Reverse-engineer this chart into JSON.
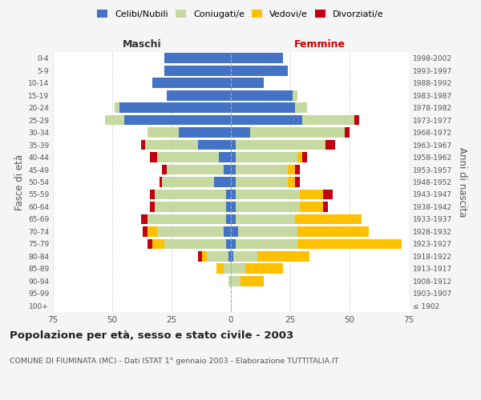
{
  "age_groups": [
    "100+",
    "95-99",
    "90-94",
    "85-89",
    "80-84",
    "75-79",
    "70-74",
    "65-69",
    "60-64",
    "55-59",
    "50-54",
    "45-49",
    "40-44",
    "35-39",
    "30-34",
    "25-29",
    "20-24",
    "15-19",
    "10-14",
    "5-9",
    "0-4"
  ],
  "birth_years": [
    "≤ 1902",
    "1903-1907",
    "1908-1912",
    "1913-1917",
    "1918-1922",
    "1923-1927",
    "1928-1932",
    "1933-1937",
    "1938-1942",
    "1943-1947",
    "1948-1952",
    "1953-1957",
    "1958-1962",
    "1963-1967",
    "1968-1972",
    "1973-1977",
    "1978-1982",
    "1983-1987",
    "1988-1992",
    "1993-1997",
    "1998-2002"
  ],
  "males": {
    "celibi": [
      0,
      0,
      0,
      0,
      1,
      2,
      3,
      2,
      2,
      2,
      7,
      3,
      5,
      14,
      22,
      45,
      47,
      27,
      33,
      28,
      28
    ],
    "coniugati": [
      0,
      0,
      1,
      3,
      9,
      26,
      28,
      33,
      30,
      30,
      22,
      24,
      26,
      22,
      13,
      8,
      2,
      0,
      0,
      0,
      0
    ],
    "vedovi": [
      0,
      0,
      0,
      3,
      2,
      5,
      4,
      0,
      0,
      0,
      0,
      0,
      0,
      0,
      0,
      0,
      0,
      0,
      0,
      0,
      0
    ],
    "divorziati": [
      0,
      0,
      0,
      0,
      2,
      2,
      2,
      3,
      2,
      2,
      1,
      2,
      3,
      2,
      0,
      0,
      0,
      0,
      0,
      0,
      0
    ]
  },
  "females": {
    "nubili": [
      0,
      0,
      0,
      0,
      1,
      2,
      3,
      2,
      2,
      2,
      2,
      2,
      2,
      2,
      8,
      30,
      27,
      26,
      14,
      24,
      22
    ],
    "coniugate": [
      0,
      0,
      4,
      6,
      10,
      26,
      25,
      25,
      27,
      27,
      22,
      22,
      26,
      38,
      40,
      22,
      5,
      2,
      0,
      0,
      0
    ],
    "vedove": [
      0,
      0,
      10,
      16,
      22,
      44,
      30,
      28,
      10,
      10,
      3,
      3,
      2,
      0,
      0,
      0,
      0,
      0,
      0,
      0,
      0
    ],
    "divorziate": [
      0,
      0,
      0,
      0,
      0,
      0,
      0,
      0,
      2,
      4,
      2,
      2,
      2,
      4,
      2,
      2,
      0,
      0,
      0,
      0,
      0
    ]
  },
  "colors": {
    "celibi": "#4472c4",
    "coniugati": "#c5d9a0",
    "vedovi": "#ffc000",
    "divorziati": "#c0000a"
  },
  "xlim": 75,
  "title": "Popolazione per età, sesso e stato civile - 2003",
  "subtitle": "COMUNE DI FIUMINATA (MC) - Dati ISTAT 1° gennaio 2003 - Elaborazione TUTTITALIA.IT",
  "ylabel_left": "Fasce di età",
  "ylabel_right": "Anni di nascita",
  "xlabel_left": "Maschi",
  "xlabel_right": "Femmine",
  "bg_color": "#f5f5f5",
  "plot_bg": "#ffffff"
}
